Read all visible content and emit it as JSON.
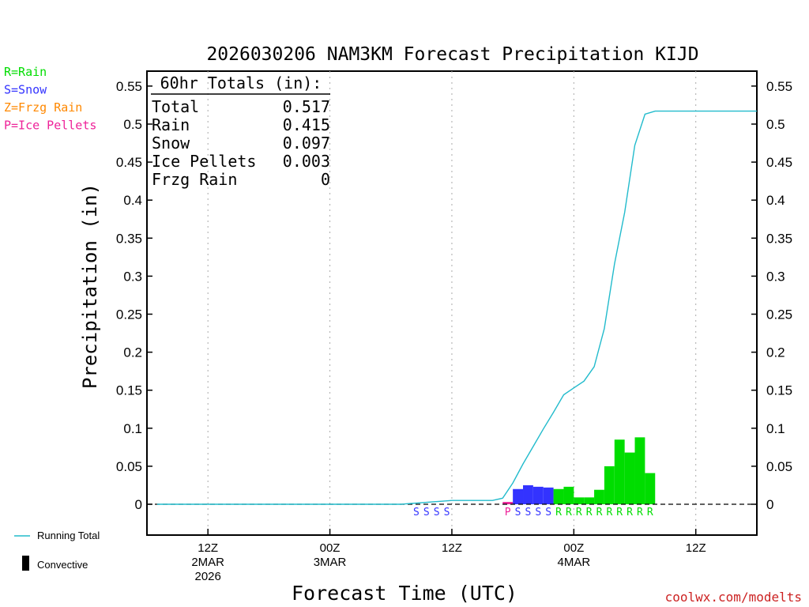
{
  "chart_data": {
    "type": "bar",
    "title": "2026030206 NAM3KM Forecast Precipitation KIJD",
    "xlabel": "Forecast Time (UTC)",
    "ylabel": "Precipitation (in)",
    "ylim": [
      -0.04,
      0.57
    ],
    "yticks": [
      0,
      0.05,
      0.1,
      0.15,
      0.2,
      0.25,
      0.3,
      0.35,
      0.4,
      0.45,
      0.5,
      0.55
    ],
    "ytick_labels": [
      "0",
      "0.05",
      "0.1",
      "0.15",
      "0.2",
      "0.25",
      "0.3",
      "0.35",
      "0.4",
      "0.45",
      "0.5",
      "0.55"
    ],
    "x_unit": "forecast hour",
    "xlim": [
      0,
      60
    ],
    "x_gridlines": [
      6,
      18,
      30,
      42,
      54
    ],
    "x_tick_labels": [
      {
        "x": 6,
        "line1": "12Z",
        "line2": "2MAR",
        "line3": "2026"
      },
      {
        "x": 18,
        "line1": "00Z",
        "line2": "3MAR",
        "line3": ""
      },
      {
        "x": 30,
        "line1": "12Z",
        "line2": "",
        "line3": ""
      },
      {
        "x": 42,
        "line1": "00Z",
        "line2": "4MAR",
        "line3": ""
      },
      {
        "x": 54,
        "line1": "12Z",
        "line2": "",
        "line3": ""
      }
    ],
    "legend": {
      "type_keys": [
        {
          "label": "R=Rain",
          "color": "#00dd00"
        },
        {
          "label": "S=Snow",
          "color": "#3333ff"
        },
        {
          "label": "Z=Frzg Rain",
          "color": "#ff8800"
        },
        {
          "label": "P=Ice Pellets",
          "color": "#ee2299"
        }
      ],
      "running_total_label": "Running Total",
      "convective_label": "Convective"
    },
    "totals": {
      "header": "60hr Totals (in):",
      "rows": [
        {
          "label": "Total",
          "value": "0.517"
        },
        {
          "label": "Rain",
          "value": "0.415"
        },
        {
          "label": "Snow",
          "value": "0.097"
        },
        {
          "label": "Ice Pellets",
          "value": "0.003"
        },
        {
          "label": "Frzg Rain",
          "value": "0"
        }
      ]
    },
    "type_colors": {
      "R": "#00dd00",
      "S": "#3333ff",
      "Z": "#ff8800",
      "P": "#ee2299"
    },
    "bars": [
      {
        "x0": 35,
        "x1": 36,
        "value": 0.003,
        "type": "P"
      },
      {
        "x0": 36,
        "x1": 37,
        "value": 0.02,
        "type": "S"
      },
      {
        "x0": 37,
        "x1": 38,
        "value": 0.025,
        "type": "S"
      },
      {
        "x0": 38,
        "x1": 39,
        "value": 0.023,
        "type": "S"
      },
      {
        "x0": 39,
        "x1": 40,
        "value": 0.022,
        "type": "S"
      },
      {
        "x0": 40,
        "x1": 41,
        "value": 0.02,
        "type": "R"
      },
      {
        "x0": 41,
        "x1": 42,
        "value": 0.023,
        "type": "R"
      },
      {
        "x0": 42,
        "x1": 43,
        "value": 0.009,
        "type": "R"
      },
      {
        "x0": 43,
        "x1": 44,
        "value": 0.009,
        "type": "R"
      },
      {
        "x0": 44,
        "x1": 45,
        "value": 0.019,
        "type": "R"
      },
      {
        "x0": 45,
        "x1": 46,
        "value": 0.05,
        "type": "R"
      },
      {
        "x0": 46,
        "x1": 47,
        "value": 0.085,
        "type": "R"
      },
      {
        "x0": 47,
        "x1": 48,
        "value": 0.068,
        "type": "R"
      },
      {
        "x0": 48,
        "x1": 49,
        "value": 0.088,
        "type": "R"
      },
      {
        "x0": 49,
        "x1": 50,
        "value": 0.041,
        "type": "R"
      }
    ],
    "type_letters": [
      {
        "x": 26.5,
        "letter": "S"
      },
      {
        "x": 27.5,
        "letter": "S"
      },
      {
        "x": 28.5,
        "letter": "S"
      },
      {
        "x": 29.5,
        "letter": "S"
      },
      {
        "x": 35.5,
        "letter": "P"
      },
      {
        "x": 36.5,
        "letter": "S"
      },
      {
        "x": 37.5,
        "letter": "S"
      },
      {
        "x": 38.5,
        "letter": "S"
      },
      {
        "x": 39.5,
        "letter": "S"
      },
      {
        "x": 40.5,
        "letter": "R"
      },
      {
        "x": 41.5,
        "letter": "R"
      },
      {
        "x": 42.5,
        "letter": "R"
      },
      {
        "x": 43.5,
        "letter": "R"
      },
      {
        "x": 44.5,
        "letter": "R"
      },
      {
        "x": 45.5,
        "letter": "R"
      },
      {
        "x": 46.5,
        "letter": "R"
      },
      {
        "x": 47.5,
        "letter": "R"
      },
      {
        "x": 48.5,
        "letter": "R"
      },
      {
        "x": 49.5,
        "letter": "R"
      }
    ],
    "running_total": {
      "name": "Running Total",
      "color": "#22bbcc",
      "x": [
        1,
        25,
        26,
        27,
        28,
        29,
        30,
        31,
        32,
        33,
        34,
        35,
        36,
        37,
        38,
        39,
        40,
        41,
        42,
        43,
        44,
        45,
        46,
        47,
        48,
        49,
        50,
        51,
        52,
        53,
        54,
        55,
        56,
        57,
        58,
        59,
        60
      ],
      "y": [
        0,
        0,
        0.001,
        0.002,
        0.003,
        0.004,
        0.005,
        0.005,
        0.005,
        0.005,
        0.005,
        0.008,
        0.028,
        0.053,
        0.076,
        0.099,
        0.121,
        0.144,
        0.153,
        0.162,
        0.181,
        0.231,
        0.316,
        0.384,
        0.472,
        0.513,
        0.517,
        0.517,
        0.517,
        0.517,
        0.517,
        0.517,
        0.517,
        0.517,
        0.517,
        0.517,
        0.517
      ]
    },
    "zero_line_style": "dashed"
  },
  "credit": "coolwx.com/modelts"
}
